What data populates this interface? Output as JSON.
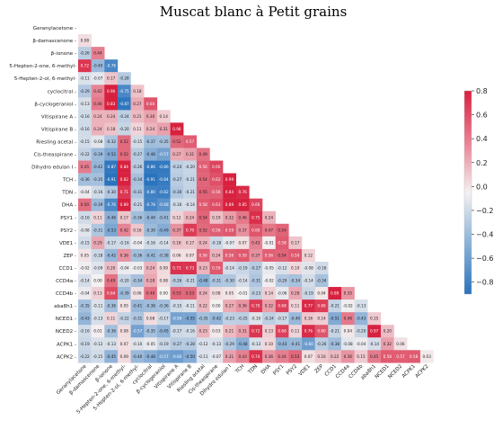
{
  "chart_data": {
    "type": "heatmap",
    "title": "Muscat blanc à Petit grains",
    "variables": [
      "Geranylacetone",
      "β-damascenone",
      "β-ionone",
      "5-Hepten-2-one, 6-methyl-",
      "5-Hepten-2-ol, 6-methyl-",
      "cyclocitral",
      "β-cyclogeraniol",
      "Vitispirane A",
      "Vitispirane B",
      "Riesling acetal",
      "Cis-theaspirane",
      "Dihydro edulan I",
      "TCH",
      "TDN",
      "DHA",
      "PSY1",
      "PSY2",
      "VDE1",
      "ZEP",
      "CCD1",
      "CCD4a",
      "CCD4b",
      "aba8h1",
      "NCED1",
      "NCED2",
      "ACPK1",
      "ACPK2"
    ],
    "row_labels": [
      "Geranylacetone -",
      "β-damascenone -",
      "β-ionone -",
      "5-Hepten-2-one, 6-methyl-",
      "5-Hepten-2-ol, 6-methyl-",
      "cyclocitral -",
      "β-cyclogeraniol -",
      "Vitispirane A -",
      "Vitispirane B -",
      "Riesling acetal -",
      "Cis-theaspirane -",
      "Dihydro edulan I -",
      "TCH -",
      "TDN -",
      "DHA -",
      "PSY1 -",
      "PSY2 -",
      "VDE1 -",
      "ZEP -",
      "CCD1 -",
      "CCD4a -",
      "CCD4b -",
      "aba8h1 -",
      "NCED1 -",
      "NCED2 -",
      "ACPK1 -",
      "ACPK2 -"
    ],
    "matrix": [
      [],
      [
        0.08
      ],
      [
        -0.26,
        0.44
      ],
      [
        0.72,
        -0.4,
        -0.76
      ],
      [
        -0.11,
        -0.07,
        0.17,
        -0.28
      ],
      [
        -0.29,
        0.42,
        0.9,
        -0.75,
        0.18
      ],
      [
        -0.13,
        0.46,
        0.83,
        -0.87,
        0.27,
        0.6
      ],
      [
        -0.16,
        0.24,
        0.24,
        -0.24,
        0.21,
        0.3,
        0.14
      ],
      [
        -0.16,
        0.24,
        0.18,
        -0.2,
        0.11,
        0.24,
        0.31,
        0.98
      ],
      [
        -0.15,
        -0.08,
        -0.32,
        0.52,
        -0.15,
        -0.37,
        -0.35,
        0.52,
        0.57
      ],
      [
        -0.22,
        -0.39,
        -0.52,
        0.52,
        -0.27,
        -0.48,
        -0.57,
        0.27,
        0.31,
        0.49
      ],
      [
        0.45,
        -0.42,
        -0.87,
        0.84,
        -0.26,
        -0.86,
        -0.86,
        -0.24,
        -0.2,
        0.56,
        0.66
      ],
      [
        -0.36,
        -0.35,
        -0.91,
        0.82,
        -0.34,
        -0.91,
        -0.84,
        -0.27,
        -0.21,
        0.54,
        0.62,
        0.99
      ],
      [
        -0.04,
        -0.16,
        -0.3,
        0.71,
        -0.31,
        -0.8,
        -0.82,
        -0.3,
        -0.21,
        0.55,
        0.56,
        0.84,
        0.76
      ],
      [
        0.5,
        -0.39,
        -0.76,
        0.89,
        -0.21,
        -0.78,
        -0.68,
        -0.16,
        -0.14,
        0.58,
        0.63,
        0.89,
        0.85,
        0.66
      ],
      [
        -0.16,
        0.11,
        -0.46,
        0.17,
        -0.36,
        -0.44,
        -0.41,
        0.12,
        0.24,
        0.54,
        0.19,
        0.32,
        0.46,
        0.75,
        0.24
      ],
      [
        -0.08,
        -0.31,
        -0.53,
        0.42,
        0.16,
        -0.39,
        -0.49,
        0.37,
        0.7,
        0.52,
        0.56,
        0.59,
        0.37,
        0.6,
        0.47,
        0.54
      ],
      [
        -0.15,
        0.29,
        -0.17,
        -0.16,
        -0.04,
        -0.16,
        -0.14,
        0.18,
        0.17,
        0.24,
        -0.18,
        -0.07,
        0.07,
        0.43,
        -0.01,
        0.58,
        0.17
      ],
      [
        0.05,
        -0.18,
        -0.42,
        0.36,
        -0.36,
        -0.41,
        -0.38,
        0.06,
        0.07,
        0.56,
        0.24,
        0.56,
        0.59,
        0.37,
        0.56,
        0.54,
        0.59,
        0.12
      ],
      [
        -0.02,
        -0.09,
        0.2,
        -0.04,
        -0.03,
        0.24,
        0.09,
        0.73,
        0.73,
        0.23,
        0.59,
        -0.14,
        -0.19,
        -0.27,
        -0.05,
        -0.12,
        0.1,
        -0.08,
        -0.16
      ],
      [
        -0.14,
        0.0,
        0.49,
        -0.2,
        -0.34,
        0.28,
        0.08,
        -0.26,
        -0.21,
        -0.48,
        -0.31,
        -0.3,
        -0.14,
        -0.31,
        -0.02,
        -0.29,
        -0.34,
        -0.14,
        -0.34
      ],
      [
        -0.04,
        0.13,
        0.64,
        -0.39,
        0.06,
        0.49,
        0.0,
        0.53,
        0.53,
        0.24,
        0.08,
        0.05,
        -0.01,
        -0.23,
        0.14,
        -0.06,
        0.28,
        -0.19,
        0.04,
        0.89,
        0.35
      ],
      [
        -0.35,
        -0.11,
        -0.36,
        0.05,
        -0.41,
        -0.38,
        -0.36,
        -0.15,
        -0.11,
        0.22,
        0.0,
        0.27,
        0.36,
        0.7,
        0.32,
        0.68,
        0.11,
        0.77,
        0.69,
        -0.21,
        -0.02,
        -0.13
      ],
      [
        -0.43,
        -0.13,
        0.11,
        -0.22,
        -0.31,
        0.08,
        -0.17,
        -0.56,
        -0.55,
        -0.35,
        -0.42,
        -0.23,
        -0.25,
        -0.1,
        -0.24,
        -0.17,
        -0.4,
        0.16,
        0.14,
        -0.51,
        0.46,
        -0.43,
        0.15
      ],
      [
        -0.16,
        0.01,
        -0.36,
        0.08,
        -0.57,
        -0.35,
        -0.45,
        -0.17,
        -0.16,
        0.23,
        0.03,
        0.21,
        0.31,
        0.72,
        0.13,
        0.68,
        0.11,
        0.76,
        0.6,
        -0.21,
        0.04,
        -0.2,
        0.97,
        0.2
      ],
      [
        -0.19,
        -0.12,
        -0.13,
        0.07,
        -0.1,
        -0.05,
        -0.19,
        -0.27,
        -0.28,
        -0.12,
        -0.13,
        -0.29,
        -0.48,
        -0.13,
        0.1,
        -0.43,
        -0.41,
        -0.6,
        -0.26,
        -0.38,
        -0.08,
        -0.04,
        -0.14,
        0.32,
        0.06
      ],
      [
        -0.22,
        -0.15,
        -0.45,
        0.09,
        -0.4,
        -0.48,
        -0.57,
        -0.6,
        -0.5,
        -0.11,
        -0.07,
        0.31,
        0.43,
        0.74,
        0.36,
        0.44,
        0.53,
        0.07,
        0.16,
        0.22,
        0.36,
        0.15,
        0.45,
        0.58,
        0.57,
        0.58,
        0.03
      ]
    ],
    "colorbar": {
      "min": -0.9,
      "max": 0.8,
      "ticks": [
        "0.8",
        "0.6",
        "0.4",
        "0.2",
        "0.0",
        "−0.2",
        "−0.4",
        "−0.6",
        "−0.8"
      ]
    },
    "colormap": {
      "low": "#2a73bd",
      "mid": "#f4f1f1",
      "high": "#d8213f"
    },
    "grid": false,
    "legend": "right"
  }
}
